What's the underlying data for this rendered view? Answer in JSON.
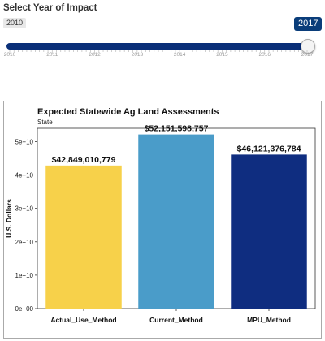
{
  "slider": {
    "title": "Select Year of Impact",
    "min_label": "2010",
    "value_label": "2017",
    "min": 2010,
    "max": 2017,
    "value": 2017,
    "tick_labels": [
      "2010",
      "2011",
      "2012",
      "2013",
      "2014",
      "2015",
      "2016",
      "2017"
    ],
    "accent_color": "#0a2f78"
  },
  "chart_data": {
    "type": "bar",
    "title": "Expected Statewide Ag Land Assessments",
    "subtitle": "State",
    "ylabel": "U.S. Dollars",
    "xlabel": "",
    "categories": [
      "Actual_Use_Method",
      "Current_Method",
      "MPU_Method"
    ],
    "values": [
      42849010779,
      52151598757,
      46121376784
    ],
    "data_labels": [
      "$42,849,010,779",
      "$52,151,598,757",
      "$46,121,376,784"
    ],
    "colors": [
      "#f7d14a",
      "#4a9cc9",
      "#0f2d80"
    ],
    "ylim": [
      0,
      54000000000
    ],
    "y_ticks": [
      0,
      10000000000,
      20000000000,
      30000000000,
      40000000000,
      50000000000
    ],
    "y_tick_labels": [
      "0e+00",
      "1e+10",
      "2e+10",
      "3e+10",
      "4e+10",
      "5e+10"
    ],
    "grid": false
  }
}
